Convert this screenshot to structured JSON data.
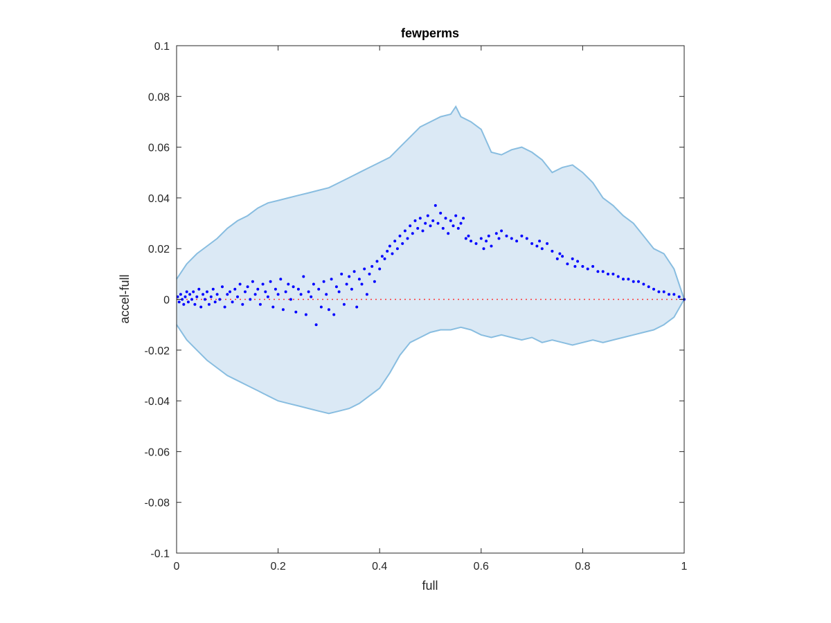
{
  "chart_data": {
    "type": "scatter",
    "title": "fewperms",
    "xlabel": "full",
    "ylabel": "accel-full",
    "xlim": [
      0,
      1
    ],
    "ylim": [
      -0.1,
      0.1
    ],
    "xticks": [
      "0",
      "0.2",
      "0.4",
      "0.6",
      "0.8",
      "1"
    ],
    "yticks": [
      "-0.1",
      "-0.08",
      "-0.06",
      "-0.04",
      "-0.02",
      "0",
      "0.02",
      "0.04",
      "0.06",
      "0.08",
      "0.1"
    ],
    "grid": false,
    "legend": "none",
    "band": {
      "name": "",
      "upper": [
        [
          0,
          0.008
        ],
        [
          0.02,
          0.014
        ],
        [
          0.04,
          0.018
        ],
        [
          0.06,
          0.021
        ],
        [
          0.08,
          0.024
        ],
        [
          0.1,
          0.028
        ],
        [
          0.12,
          0.031
        ],
        [
          0.14,
          0.033
        ],
        [
          0.16,
          0.036
        ],
        [
          0.18,
          0.038
        ],
        [
          0.2,
          0.039
        ],
        [
          0.22,
          0.04
        ],
        [
          0.24,
          0.041
        ],
        [
          0.26,
          0.042
        ],
        [
          0.28,
          0.043
        ],
        [
          0.3,
          0.044
        ],
        [
          0.32,
          0.046
        ],
        [
          0.34,
          0.048
        ],
        [
          0.36,
          0.05
        ],
        [
          0.38,
          0.052
        ],
        [
          0.4,
          0.054
        ],
        [
          0.42,
          0.056
        ],
        [
          0.44,
          0.06
        ],
        [
          0.46,
          0.064
        ],
        [
          0.48,
          0.068
        ],
        [
          0.5,
          0.07
        ],
        [
          0.52,
          0.072
        ],
        [
          0.54,
          0.073
        ],
        [
          0.55,
          0.076
        ],
        [
          0.56,
          0.072
        ],
        [
          0.58,
          0.07
        ],
        [
          0.6,
          0.067
        ],
        [
          0.62,
          0.058
        ],
        [
          0.64,
          0.057
        ],
        [
          0.66,
          0.059
        ],
        [
          0.68,
          0.06
        ],
        [
          0.7,
          0.058
        ],
        [
          0.72,
          0.055
        ],
        [
          0.74,
          0.05
        ],
        [
          0.76,
          0.052
        ],
        [
          0.78,
          0.053
        ],
        [
          0.8,
          0.05
        ],
        [
          0.82,
          0.046
        ],
        [
          0.84,
          0.04
        ],
        [
          0.86,
          0.037
        ],
        [
          0.88,
          0.033
        ],
        [
          0.9,
          0.03
        ],
        [
          0.92,
          0.025
        ],
        [
          0.94,
          0.02
        ],
        [
          0.96,
          0.018
        ],
        [
          0.98,
          0.012
        ],
        [
          1.0,
          0.0
        ]
      ],
      "lower": [
        [
          0,
          -0.01
        ],
        [
          0.02,
          -0.016
        ],
        [
          0.04,
          -0.02
        ],
        [
          0.06,
          -0.024
        ],
        [
          0.08,
          -0.027
        ],
        [
          0.1,
          -0.03
        ],
        [
          0.12,
          -0.032
        ],
        [
          0.14,
          -0.034
        ],
        [
          0.16,
          -0.036
        ],
        [
          0.18,
          -0.038
        ],
        [
          0.2,
          -0.04
        ],
        [
          0.22,
          -0.041
        ],
        [
          0.24,
          -0.042
        ],
        [
          0.26,
          -0.043
        ],
        [
          0.28,
          -0.044
        ],
        [
          0.3,
          -0.045
        ],
        [
          0.32,
          -0.044
        ],
        [
          0.34,
          -0.043
        ],
        [
          0.36,
          -0.041
        ],
        [
          0.38,
          -0.038
        ],
        [
          0.4,
          -0.035
        ],
        [
          0.42,
          -0.029
        ],
        [
          0.44,
          -0.022
        ],
        [
          0.46,
          -0.017
        ],
        [
          0.48,
          -0.015
        ],
        [
          0.5,
          -0.013
        ],
        [
          0.52,
          -0.012
        ],
        [
          0.54,
          -0.012
        ],
        [
          0.56,
          -0.011
        ],
        [
          0.58,
          -0.012
        ],
        [
          0.6,
          -0.014
        ],
        [
          0.62,
          -0.015
        ],
        [
          0.64,
          -0.014
        ],
        [
          0.66,
          -0.015
        ],
        [
          0.68,
          -0.016
        ],
        [
          0.7,
          -0.015
        ],
        [
          0.72,
          -0.017
        ],
        [
          0.74,
          -0.016
        ],
        [
          0.76,
          -0.017
        ],
        [
          0.78,
          -0.018
        ],
        [
          0.8,
          -0.017
        ],
        [
          0.82,
          -0.016
        ],
        [
          0.84,
          -0.017
        ],
        [
          0.86,
          -0.016
        ],
        [
          0.88,
          -0.015
        ],
        [
          0.9,
          -0.014
        ],
        [
          0.92,
          -0.013
        ],
        [
          0.94,
          -0.012
        ],
        [
          0.96,
          -0.01
        ],
        [
          0.98,
          -0.007
        ],
        [
          1.0,
          0.0
        ]
      ]
    },
    "series": [
      {
        "points": [
          [
            0.002,
            0.001
          ],
          [
            0.005,
            -0.001
          ],
          [
            0.008,
            0.002
          ],
          [
            0.011,
            0.0
          ],
          [
            0.014,
            -0.002
          ],
          [
            0.017,
            0.001
          ],
          [
            0.02,
            0.003
          ],
          [
            0.023,
            -0.001
          ],
          [
            0.026,
            0.002
          ],
          [
            0.03,
            0.0
          ],
          [
            0.033,
            0.003
          ],
          [
            0.036,
            -0.002
          ],
          [
            0.04,
            0.001
          ],
          [
            0.044,
            0.004
          ],
          [
            0.048,
            -0.003
          ],
          [
            0.052,
            0.002
          ],
          [
            0.056,
            0.0
          ],
          [
            0.06,
            0.003
          ],
          [
            0.064,
            -0.002
          ],
          [
            0.068,
            0.001
          ],
          [
            0.072,
            0.004
          ],
          [
            0.076,
            -0.001
          ],
          [
            0.08,
            0.002
          ],
          [
            0.085,
            0.0
          ],
          [
            0.09,
            0.005
          ],
          [
            0.095,
            -0.003
          ],
          [
            0.1,
            0.002
          ],
          [
            0.105,
            0.003
          ],
          [
            0.11,
            -0.001
          ],
          [
            0.115,
            0.004
          ],
          [
            0.12,
            0.001
          ],
          [
            0.125,
            0.006
          ],
          [
            0.13,
            -0.002
          ],
          [
            0.135,
            0.003
          ],
          [
            0.14,
            0.005
          ],
          [
            0.145,
            0.0
          ],
          [
            0.15,
            0.007
          ],
          [
            0.155,
            0.002
          ],
          [
            0.16,
            0.004
          ],
          [
            0.165,
            -0.002
          ],
          [
            0.17,
            0.006
          ],
          [
            0.175,
            0.003
          ],
          [
            0.18,
            0.001
          ],
          [
            0.185,
            0.007
          ],
          [
            0.19,
            -0.003
          ],
          [
            0.195,
            0.004
          ],
          [
            0.2,
            0.002
          ],
          [
            0.205,
            0.008
          ],
          [
            0.21,
            -0.004
          ],
          [
            0.215,
            0.003
          ],
          [
            0.22,
            0.006
          ],
          [
            0.225,
            0.0
          ],
          [
            0.23,
            0.005
          ],
          [
            0.235,
            -0.005
          ],
          [
            0.24,
            0.004
          ],
          [
            0.245,
            0.002
          ],
          [
            0.25,
            0.009
          ],
          [
            0.255,
            -0.006
          ],
          [
            0.26,
            0.003
          ],
          [
            0.265,
            0.001
          ],
          [
            0.27,
            0.006
          ],
          [
            0.275,
            -0.01
          ],
          [
            0.28,
            0.004
          ],
          [
            0.285,
            -0.003
          ],
          [
            0.29,
            0.007
          ],
          [
            0.295,
            0.002
          ],
          [
            0.3,
            -0.004
          ],
          [
            0.305,
            0.008
          ],
          [
            0.31,
            -0.006
          ],
          [
            0.315,
            0.005
          ],
          [
            0.32,
            0.003
          ],
          [
            0.325,
            0.01
          ],
          [
            0.33,
            -0.002
          ],
          [
            0.335,
            0.006
          ],
          [
            0.34,
            0.009
          ],
          [
            0.345,
            0.004
          ],
          [
            0.35,
            0.011
          ],
          [
            0.355,
            -0.003
          ],
          [
            0.36,
            0.008
          ],
          [
            0.365,
            0.006
          ],
          [
            0.37,
            0.012
          ],
          [
            0.375,
            0.002
          ],
          [
            0.38,
            0.01
          ],
          [
            0.385,
            0.013
          ],
          [
            0.39,
            0.007
          ],
          [
            0.395,
            0.015
          ],
          [
            0.4,
            0.012
          ],
          [
            0.405,
            0.017
          ],
          [
            0.41,
            0.016
          ],
          [
            0.415,
            0.019
          ],
          [
            0.42,
            0.021
          ],
          [
            0.425,
            0.018
          ],
          [
            0.43,
            0.023
          ],
          [
            0.435,
            0.02
          ],
          [
            0.44,
            0.025
          ],
          [
            0.445,
            0.022
          ],
          [
            0.45,
            0.027
          ],
          [
            0.455,
            0.024
          ],
          [
            0.46,
            0.029
          ],
          [
            0.465,
            0.026
          ],
          [
            0.47,
            0.031
          ],
          [
            0.475,
            0.028
          ],
          [
            0.48,
            0.032
          ],
          [
            0.485,
            0.027
          ],
          [
            0.49,
            0.03
          ],
          [
            0.495,
            0.033
          ],
          [
            0.5,
            0.029
          ],
          [
            0.505,
            0.031
          ],
          [
            0.51,
            0.037
          ],
          [
            0.515,
            0.03
          ],
          [
            0.52,
            0.034
          ],
          [
            0.525,
            0.028
          ],
          [
            0.53,
            0.032
          ],
          [
            0.535,
            0.026
          ],
          [
            0.54,
            0.031
          ],
          [
            0.545,
            0.029
          ],
          [
            0.55,
            0.033
          ],
          [
            0.555,
            0.028
          ],
          [
            0.56,
            0.03
          ],
          [
            0.565,
            0.032
          ],
          [
            0.57,
            0.024
          ],
          [
            0.575,
            0.025
          ],
          [
            0.58,
            0.023
          ],
          [
            0.59,
            0.022
          ],
          [
            0.6,
            0.024
          ],
          [
            0.605,
            0.02
          ],
          [
            0.61,
            0.023
          ],
          [
            0.615,
            0.025
          ],
          [
            0.62,
            0.021
          ],
          [
            0.63,
            0.026
          ],
          [
            0.635,
            0.024
          ],
          [
            0.64,
            0.027
          ],
          [
            0.65,
            0.025
          ],
          [
            0.66,
            0.024
          ],
          [
            0.67,
            0.023
          ],
          [
            0.68,
            0.025
          ],
          [
            0.69,
            0.024
          ],
          [
            0.7,
            0.022
          ],
          [
            0.71,
            0.021
          ],
          [
            0.715,
            0.023
          ],
          [
            0.72,
            0.02
          ],
          [
            0.73,
            0.022
          ],
          [
            0.74,
            0.019
          ],
          [
            0.75,
            0.016
          ],
          [
            0.755,
            0.018
          ],
          [
            0.76,
            0.017
          ],
          [
            0.77,
            0.014
          ],
          [
            0.78,
            0.016
          ],
          [
            0.785,
            0.013
          ],
          [
            0.79,
            0.015
          ],
          [
            0.8,
            0.013
          ],
          [
            0.81,
            0.012
          ],
          [
            0.82,
            0.013
          ],
          [
            0.83,
            0.011
          ],
          [
            0.84,
            0.011
          ],
          [
            0.85,
            0.01
          ],
          [
            0.86,
            0.01
          ],
          [
            0.87,
            0.009
          ],
          [
            0.88,
            0.008
          ],
          [
            0.89,
            0.008
          ],
          [
            0.9,
            0.007
          ],
          [
            0.91,
            0.007
          ],
          [
            0.92,
            0.006
          ],
          [
            0.93,
            0.005
          ],
          [
            0.94,
            0.004
          ],
          [
            0.95,
            0.003
          ],
          [
            0.96,
            0.003
          ],
          [
            0.97,
            0.002
          ],
          [
            0.98,
            0.002
          ],
          [
            0.99,
            0.001
          ],
          [
            1.0,
            0.0
          ]
        ]
      }
    ],
    "reference_line": {
      "y": 0,
      "style": "dotted"
    },
    "colors": {
      "band_fill": "#dbe9f5",
      "band_line": "#88bde0",
      "points": "#0000ff",
      "reference": "#ff3333",
      "axis": "#262626"
    }
  }
}
